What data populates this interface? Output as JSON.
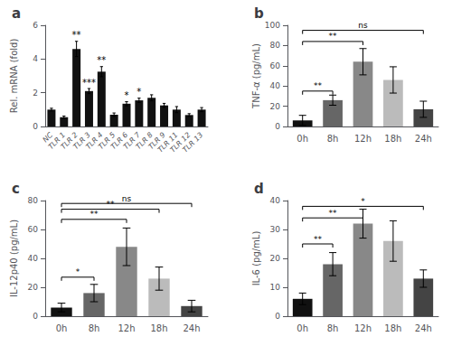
{
  "chart_data": [
    {
      "type": "bar",
      "title": "a",
      "categories": [
        "NC",
        "TLR 1",
        "TLR 2",
        "TLR 3",
        "TLR 4",
        "TLR 5",
        "TLR 6",
        "TLR 7",
        "TLR 8",
        "TLR 9",
        "TLR 11",
        "TLR 12",
        "TLR 13"
      ],
      "values": [
        1.0,
        0.55,
        4.6,
        2.1,
        3.25,
        0.7,
        1.35,
        1.55,
        1.7,
        1.25,
        1.0,
        0.68,
        1.0
      ],
      "errors": [
        0.08,
        0.07,
        0.45,
        0.15,
        0.3,
        0.1,
        0.12,
        0.13,
        0.18,
        0.12,
        0.18,
        0.08,
        0.12
      ],
      "color": "#111111",
      "ylabel": "Rel. mRNA (fold)",
      "ylim": [
        0,
        6
      ],
      "yticks": [
        0,
        2,
        4,
        6
      ],
      "annotations": [
        {
          "category": "TLR 2",
          "text": "**"
        },
        {
          "category": "TLR 3",
          "text": "***"
        },
        {
          "category": "TLR 4",
          "text": "**"
        },
        {
          "category": "TLR 6",
          "text": "*"
        },
        {
          "category": "TLR 7",
          "text": "*"
        }
      ]
    },
    {
      "type": "bar",
      "title": "b",
      "categories": [
        "0h",
        "8h",
        "12h",
        "18h",
        "24h"
      ],
      "values": [
        6,
        26,
        64,
        46,
        17
      ],
      "errors": [
        5,
        5,
        13,
        13,
        8
      ],
      "colors": [
        "#111111",
        "#666666",
        "#888888",
        "#bbbbbb",
        "#444444"
      ],
      "ylabel": "TNF-α (pg/mL)",
      "ylim": [
        0,
        100
      ],
      "yticks": [
        0,
        20,
        40,
        60,
        80,
        100
      ],
      "brackets": [
        {
          "from": "0h",
          "to": "8h",
          "label": "**",
          "y": 35
        },
        {
          "from": "0h",
          "to": "12h",
          "label": "**",
          "y": 84
        },
        {
          "from": "0h",
          "to": "24h",
          "label": "ns",
          "y": 95
        }
      ]
    },
    {
      "type": "bar",
      "title": "c",
      "categories": [
        "0h",
        "8h",
        "12h",
        "18h",
        "24h"
      ],
      "values": [
        6,
        16,
        48,
        26,
        7
      ],
      "errors": [
        3,
        6,
        13,
        8,
        4
      ],
      "colors": [
        "#111111",
        "#666666",
        "#888888",
        "#bbbbbb",
        "#444444"
      ],
      "ylabel": "IL-12p40 (pg/mL)",
      "ylim": [
        0,
        80
      ],
      "yticks": [
        0,
        20,
        40,
        60,
        80
      ],
      "brackets": [
        {
          "from": "0h",
          "to": "8h",
          "label": "*",
          "y": 27
        },
        {
          "from": "0h",
          "to": "12h",
          "label": "**",
          "y": 67
        },
        {
          "from": "0h",
          "to": "18h",
          "label": "**",
          "y": 74
        },
        {
          "from": "0h",
          "to": "24h",
          "label": "ns",
          "y": 78
        }
      ]
    },
    {
      "type": "bar",
      "title": "d",
      "categories": [
        "0h",
        "8h",
        "12h",
        "18h",
        "24h"
      ],
      "values": [
        6,
        18,
        32,
        26,
        13
      ],
      "errors": [
        2,
        4,
        5,
        7,
        3
      ],
      "colors": [
        "#111111",
        "#666666",
        "#888888",
        "#bbbbbb",
        "#444444"
      ],
      "ylabel": "IL-6 (pg/mL)",
      "ylim": [
        0,
        40
      ],
      "yticks": [
        0,
        10,
        20,
        30,
        40
      ],
      "brackets": [
        {
          "from": "0h",
          "to": "8h",
          "label": "**",
          "y": 25
        },
        {
          "from": "0h",
          "to": "12h",
          "label": "**",
          "y": 34
        },
        {
          "from": "0h",
          "to": "24h",
          "label": "*",
          "y": 38
        }
      ]
    }
  ]
}
